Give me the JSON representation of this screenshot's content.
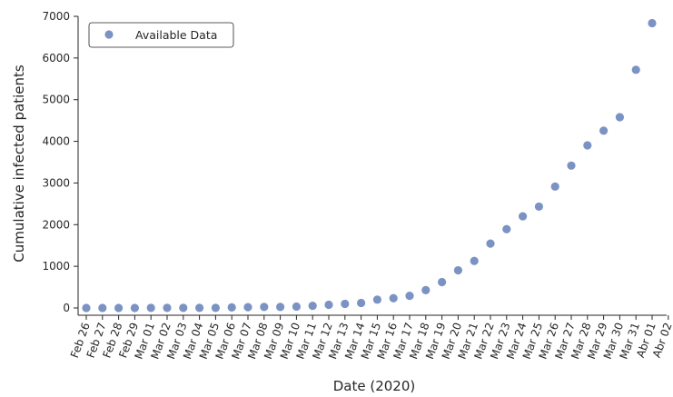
{
  "chart_data": {
    "type": "scatter",
    "xlabel": "Date (2020)",
    "ylabel": "Cumulative infected patients",
    "ylim": [
      0,
      7000
    ],
    "yticks": [
      0,
      1000,
      2000,
      3000,
      4000,
      5000,
      6000,
      7000
    ],
    "x_tick_labels": [
      "Feb 26",
      "Feb 27",
      "Feb 28",
      "Feb 29",
      "Mar 01",
      "Mar 02",
      "Mar 03",
      "Mar 04",
      "Mar 05",
      "Mar 06",
      "Mar 07",
      "Mar 08",
      "Mar 09",
      "Mar 10",
      "Mar 11",
      "Mar 12",
      "Mar 13",
      "Mar 14",
      "Mar 15",
      "Mar 16",
      "Mar 17",
      "Mar 18",
      "Mar 19",
      "Mar 20",
      "Mar 21",
      "Mar 22",
      "Mar 23",
      "Mar 24",
      "Mar 25",
      "Mar 26",
      "Mar 27",
      "Mar 28",
      "Mar 29",
      "Mar 30",
      "Mar 31",
      "Abr 01",
      "Abr 02"
    ],
    "legend": "upper-left",
    "grid": false,
    "colors": {
      "marker": "#7b93c3",
      "axis": "#262626"
    },
    "series": [
      {
        "name": "Available Data",
        "x": [
          "Feb 26",
          "Feb 27",
          "Feb 28",
          "Feb 29",
          "Mar 01",
          "Mar 02",
          "Mar 03",
          "Mar 04",
          "Mar 05",
          "Mar 06",
          "Mar 07",
          "Mar 08",
          "Mar 09",
          "Mar 10",
          "Mar 11",
          "Mar 12",
          "Mar 13",
          "Mar 14",
          "Mar 15",
          "Mar 16",
          "Mar 17",
          "Mar 18",
          "Mar 19",
          "Mar 20",
          "Mar 21",
          "Mar 22",
          "Mar 23",
          "Mar 24",
          "Mar 25",
          "Mar 26",
          "Mar 27",
          "Mar 28",
          "Mar 29",
          "Mar 30",
          "Mar 31",
          "Abr 01"
        ],
        "values": [
          1,
          1,
          1,
          1,
          2,
          2,
          2,
          2,
          3,
          13,
          19,
          25,
          25,
          34,
          52,
          77,
          98,
          121,
          200,
          234,
          291,
          428,
          621,
          904,
          1128,
          1546,
          1891,
          2201,
          2433,
          2915,
          3417,
          3904,
          4256,
          4579,
          5717,
          6836
        ]
      }
    ]
  }
}
